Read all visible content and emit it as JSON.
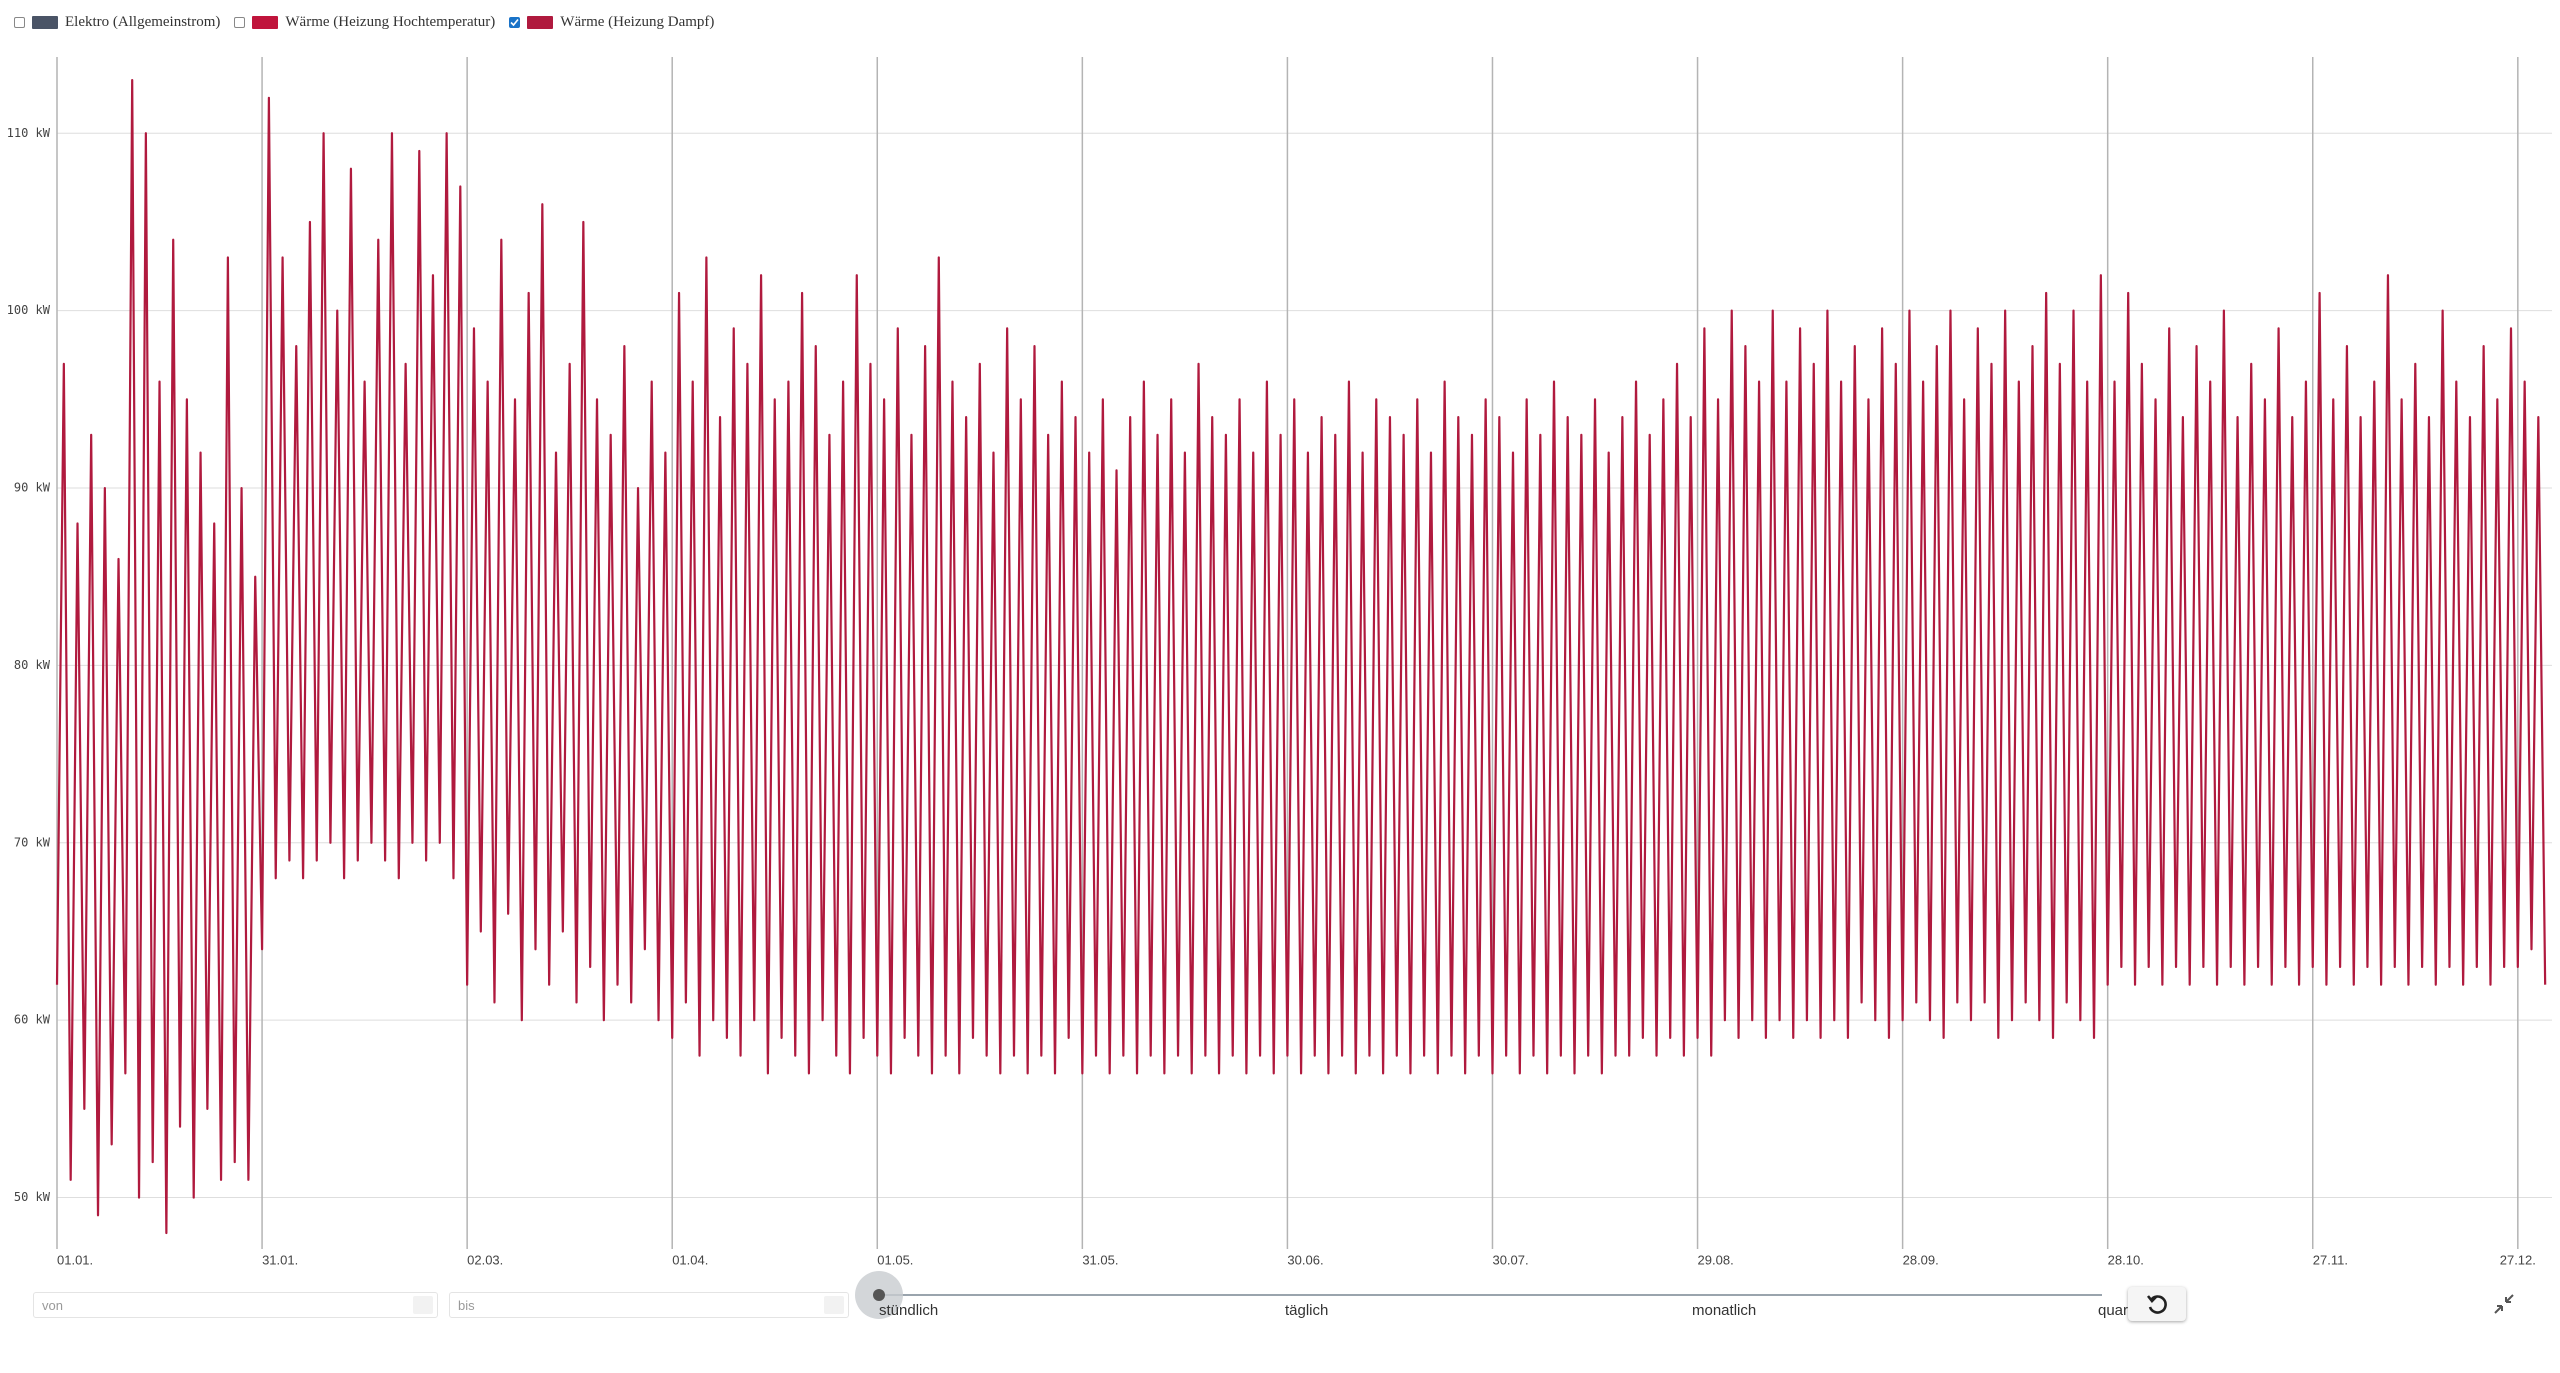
{
  "chart_data": {
    "type": "line",
    "series": [
      {
        "name": "Elektro (Allgemeinstrom)",
        "color": "#4a5466",
        "visible": false
      },
      {
        "name": "Wärme (Heizung Hochtemperatur)",
        "color": "#c0143c",
        "visible": false
      },
      {
        "name": "Wärme (Heizung Dampf)",
        "color": "#b01a3e",
        "visible": true,
        "values": [
          62,
          97,
          51,
          88,
          55,
          93,
          49,
          90,
          53,
          86,
          57,
          113,
          50,
          110,
          52,
          96,
          48,
          104,
          54,
          95,
          50,
          92,
          55,
          88,
          51,
          103,
          52,
          90,
          51,
          85,
          64,
          112,
          68,
          103,
          69,
          98,
          68,
          105,
          69,
          110,
          70,
          100,
          68,
          108,
          69,
          96,
          70,
          104,
          69,
          110,
          68,
          97,
          70,
          109,
          69,
          102,
          70,
          110,
          68,
          107,
          62,
          99,
          65,
          96,
          61,
          104,
          66,
          95,
          60,
          101,
          64,
          106,
          62,
          92,
          65,
          97,
          61,
          105,
          63,
          95,
          60,
          93,
          62,
          98,
          61,
          90,
          64,
          96,
          60,
          92,
          59,
          101,
          61,
          96,
          58,
          103,
          60,
          94,
          59,
          99,
          58,
          97,
          60,
          102,
          57,
          95,
          59,
          96,
          58,
          101,
          57,
          98,
          60,
          93,
          58,
          96,
          57,
          102,
          59,
          97,
          58,
          95,
          57,
          99,
          59,
          93,
          58,
          98,
          57,
          103,
          58,
          96,
          57,
          94,
          59,
          97,
          58,
          92,
          57,
          99,
          58,
          95,
          57,
          98,
          58,
          93,
          57,
          96,
          59,
          94,
          57,
          92,
          58,
          95,
          57,
          91,
          58,
          94,
          57,
          96,
          58,
          93,
          57,
          95,
          58,
          92,
          57,
          97,
          58,
          94,
          57,
          93,
          58,
          95,
          57,
          92,
          58,
          96,
          57,
          93,
          58,
          95,
          57,
          92,
          58,
          94,
          57,
          93,
          58,
          96,
          57,
          92,
          58,
          95,
          57,
          94,
          58,
          93,
          57,
          95,
          58,
          92,
          57,
          96,
          58,
          94,
          57,
          93,
          58,
          95,
          57,
          94,
          58,
          92,
          57,
          95,
          58,
          93,
          57,
          96,
          58,
          94,
          57,
          93,
          58,
          95,
          57,
          92,
          58,
          94,
          58,
          96,
          59,
          93,
          58,
          95,
          59,
          97,
          58,
          94,
          59,
          99,
          58,
          95,
          60,
          100,
          59,
          98,
          60,
          96,
          59,
          100,
          60,
          96,
          59,
          99,
          60,
          97,
          59,
          100,
          60,
          96,
          59,
          98,
          61,
          95,
          60,
          99,
          59,
          97,
          60,
          100,
          61,
          96,
          60,
          98,
          59,
          100,
          61,
          95,
          60,
          99,
          61,
          97,
          59,
          100,
          60,
          96,
          61,
          98,
          60,
          101,
          59,
          97,
          61,
          100,
          60,
          96,
          59,
          102,
          62,
          96,
          63,
          101,
          62,
          97,
          63,
          95,
          62,
          99,
          63,
          94,
          62,
          98,
          63,
          96,
          62,
          100,
          63,
          94,
          62,
          97,
          63,
          95,
          62,
          99,
          63,
          94,
          62,
          96,
          63,
          101,
          62,
          95,
          63,
          98,
          62,
          94,
          63,
          96,
          62,
          102,
          63,
          95,
          62,
          97,
          63,
          94,
          62,
          100,
          63,
          96,
          62,
          94,
          63,
          98,
          62,
          95,
          63,
          99,
          63,
          96,
          64,
          94,
          62
        ]
      }
    ],
    "x": [
      0,
      1,
      2,
      3,
      4,
      5,
      6,
      7,
      8,
      9,
      10,
      11,
      12,
      13,
      14,
      15,
      16,
      17,
      18,
      19,
      20,
      21,
      22,
      23,
      24,
      25,
      26,
      27,
      28,
      29,
      30,
      31,
      32,
      33,
      34,
      35,
      36,
      37,
      38,
      39,
      40,
      41,
      42,
      43,
      44,
      45,
      46,
      47,
      48,
      49,
      50,
      51,
      52,
      53,
      54,
      55,
      56,
      57,
      58,
      59,
      60,
      61,
      62,
      63,
      64,
      65,
      66,
      67,
      68,
      69,
      70,
      71,
      72,
      73,
      74,
      75,
      76,
      77,
      78,
      79,
      80,
      81,
      82,
      83,
      84,
      85,
      86,
      87,
      88,
      89,
      90,
      91,
      92,
      93,
      94,
      95,
      96,
      97,
      98,
      99,
      100,
      101,
      102,
      103,
      104,
      105,
      106,
      107,
      108,
      109,
      110,
      111,
      112,
      113,
      114,
      115,
      116,
      117,
      118,
      119,
      120,
      121,
      122,
      123,
      124,
      125,
      126,
      127,
      128,
      129,
      130,
      131,
      132,
      133,
      134,
      135,
      136,
      137,
      138,
      139,
      140,
      141,
      142,
      143,
      144,
      145,
      146,
      147,
      148,
      149,
      150,
      151,
      152,
      153,
      154,
      155,
      156,
      157,
      158,
      159,
      160,
      161,
      162,
      163,
      164,
      165,
      166,
      167,
      168,
      169,
      170,
      171,
      172,
      173,
      174,
      175,
      176,
      177,
      178,
      179,
      180,
      181,
      182,
      183,
      184,
      185,
      186,
      187,
      188,
      189,
      190,
      191,
      192,
      193,
      194,
      195,
      196,
      197,
      198,
      199,
      200,
      201,
      202,
      203,
      204,
      205,
      206,
      207,
      208,
      209,
      210,
      211,
      212,
      213,
      214,
      215,
      216,
      217,
      218,
      219,
      220,
      221,
      222,
      223,
      224,
      225,
      226,
      227,
      228,
      229,
      230,
      231,
      232,
      233,
      234,
      235,
      236,
      237,
      238,
      239,
      240,
      241,
      242,
      243,
      244,
      245,
      246,
      247,
      248,
      249,
      250,
      251,
      252,
      253,
      254,
      255,
      256,
      257,
      258,
      259,
      260,
      261,
      262,
      263,
      264,
      265,
      266,
      267,
      268,
      269,
      270,
      271,
      272,
      273,
      274,
      275,
      276,
      277,
      278,
      279,
      280,
      281,
      282,
      283,
      284,
      285,
      286,
      287,
      288,
      289,
      290,
      291,
      292,
      293,
      294,
      295,
      296,
      297,
      298,
      299,
      300,
      301,
      302,
      303,
      304,
      305,
      306,
      307,
      308,
      309,
      310,
      311,
      312,
      313,
      314,
      315,
      316,
      317,
      318,
      319,
      320,
      321,
      322,
      323,
      324,
      325,
      326,
      327,
      328,
      329,
      330,
      331,
      332,
      333,
      334,
      335,
      336,
      337,
      338,
      339,
      340,
      341,
      342,
      343,
      344,
      345,
      346,
      347,
      348,
      349,
      350,
      351,
      352,
      353,
      354,
      355,
      356,
      357,
      358,
      359,
      360,
      361,
      362,
      363,
      364
    ],
    "xlim": [
      0,
      365
    ],
    "xticks": [
      {
        "value": 0,
        "label": "01.01."
      },
      {
        "value": 30,
        "label": "31.01."
      },
      {
        "value": 60,
        "label": "02.03."
      },
      {
        "value": 90,
        "label": "01.04."
      },
      {
        "value": 120,
        "label": "01.05."
      },
      {
        "value": 150,
        "label": "31.05."
      },
      {
        "value": 180,
        "label": "30.06."
      },
      {
        "value": 210,
        "label": "30.07."
      },
      {
        "value": 240,
        "label": "29.08."
      },
      {
        "value": 270,
        "label": "28.09."
      },
      {
        "value": 300,
        "label": "28.10."
      },
      {
        "value": 330,
        "label": "27.11."
      },
      {
        "value": 360,
        "label": "27.12."
      }
    ],
    "ylim": [
      47.1,
      114.3
    ],
    "yticks": [
      {
        "value": 50,
        "label": "50 kW"
      },
      {
        "value": 60,
        "label": "60 kW"
      },
      {
        "value": 70,
        "label": "70 kW"
      },
      {
        "value": 80,
        "label": "80 kW"
      },
      {
        "value": 90,
        "label": "90 kW"
      },
      {
        "value": 100,
        "label": "100 kW"
      },
      {
        "value": 110,
        "label": "110 kW"
      }
    ],
    "grid": true
  },
  "controls": {
    "from_placeholder": "von",
    "to_placeholder": "bis",
    "resolutions": [
      "stündlich",
      "täglich",
      "monatlich",
      "quar"
    ]
  }
}
